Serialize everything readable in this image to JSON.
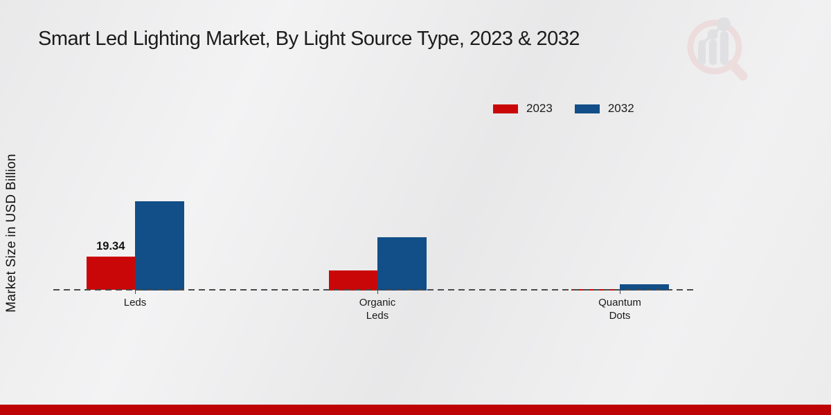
{
  "page": {
    "title": "Smart Led Lighting Market, By Light Source Type, 2023 & 2032",
    "y_axis_label": "Market Size in USD Billion"
  },
  "legend": {
    "items": [
      {
        "label": "2023",
        "color": "#c90709"
      },
      {
        "label": "2032",
        "color": "#124e87"
      }
    ]
  },
  "chart_data": {
    "type": "bar",
    "title": "Smart Led Lighting Market, By Light Source Type, 2023 & 2032",
    "xlabel": "",
    "ylabel": "Market Size in USD Billion",
    "categories": [
      "Leds",
      "Organic Leds",
      "Quantum Dots"
    ],
    "category_label_lines": [
      [
        "Leds"
      ],
      [
        "Organic",
        "Leds"
      ],
      [
        "Quantum",
        "Dots"
      ]
    ],
    "series": [
      {
        "name": "2023",
        "color": "#c90709",
        "values": [
          19.34,
          11.6,
          0.5
        ],
        "bar_labels": [
          "19.34",
          "",
          ""
        ]
      },
      {
        "name": "2032",
        "color": "#124e87",
        "values": [
          51.3,
          30.6,
          3.3
        ],
        "bar_labels": [
          "",
          "",
          ""
        ]
      }
    ],
    "ylim": [
      0,
      52
    ],
    "grid": false,
    "legend_position": "top-right",
    "baseline_style": "dashed"
  },
  "colors": {
    "series_2023": "#c90709",
    "series_2032": "#124e87",
    "bottom_band": "#bd0303",
    "axis_dash": "#4a4a4a",
    "background": "#ececed"
  },
  "watermark": {
    "name": "magnifier-bar-chart-logo"
  }
}
